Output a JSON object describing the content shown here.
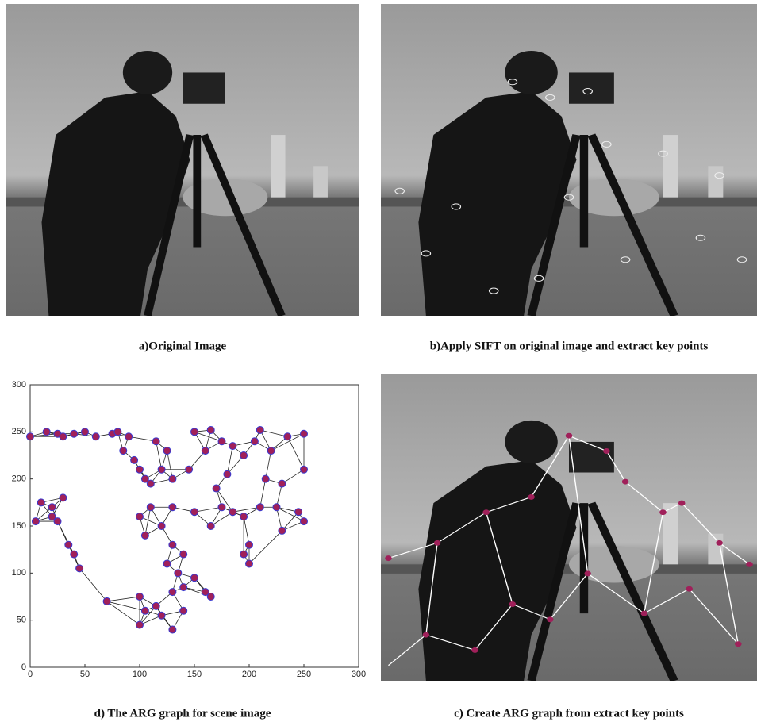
{
  "panels": [
    {
      "caption": "a)Original Image"
    },
    {
      "caption": "b)Apply SIFT on original image and extract key points"
    },
    {
      "caption": "d) The ARG graph for scene image"
    },
    {
      "caption": "c) Create ARG graph from extract key points"
    }
  ],
  "chart_data": {
    "type": "scatter",
    "x": [
      0,
      15,
      25,
      30,
      40,
      50,
      60,
      75,
      80,
      90,
      85,
      95,
      100,
      105,
      110,
      120,
      125,
      115,
      130,
      145,
      150,
      165,
      160,
      175,
      185,
      195,
      205,
      210,
      220,
      235,
      250,
      250,
      230,
      215,
      180,
      170,
      175,
      185,
      195,
      210,
      225,
      245,
      250,
      230,
      200,
      195,
      200,
      165,
      150,
      130,
      110,
      100,
      105,
      120,
      130,
      140,
      125,
      135,
      140,
      130,
      150,
      160,
      165,
      140,
      120,
      105,
      100,
      130,
      100,
      70,
      115,
      10,
      5,
      20,
      30,
      25,
      35,
      40,
      45,
      20
    ],
    "values": [
      245,
      250,
      248,
      245,
      248,
      250,
      245,
      248,
      250,
      245,
      230,
      220,
      210,
      200,
      195,
      210,
      230,
      240,
      200,
      210,
      250,
      252,
      230,
      240,
      235,
      225,
      240,
      252,
      230,
      245,
      248,
      210,
      195,
      200,
      205,
      190,
      170,
      165,
      160,
      170,
      170,
      165,
      155,
      145,
      130,
      120,
      110,
      150,
      165,
      170,
      170,
      160,
      140,
      150,
      130,
      120,
      110,
      100,
      85,
      80,
      95,
      80,
      75,
      60,
      55,
      60,
      45,
      40,
      75,
      70,
      65,
      175,
      155,
      170,
      180,
      155,
      130,
      120,
      105,
      160
    ],
    "color": "#a0205a",
    "xlim": [
      0,
      300
    ],
    "ylim": [
      0,
      300
    ],
    "xticks": [
      0,
      50,
      100,
      150,
      200,
      250,
      300
    ],
    "yticks": [
      0,
      50,
      100,
      150,
      200,
      250,
      300
    ]
  }
}
